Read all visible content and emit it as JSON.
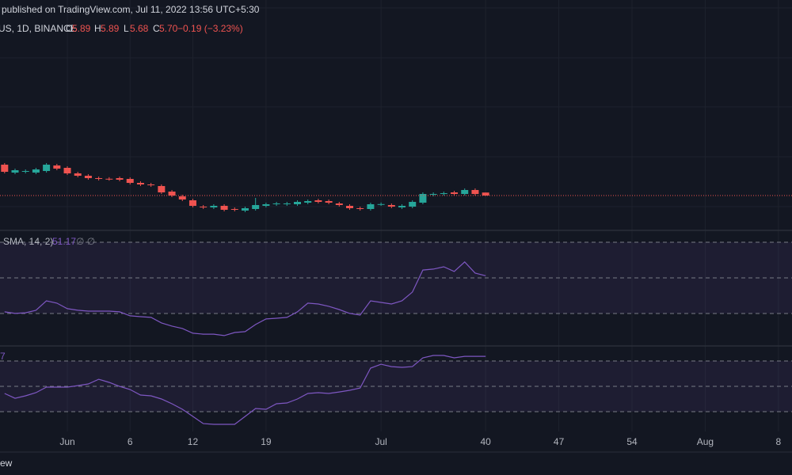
{
  "chart_data": {
    "type": "candlestick",
    "header": "published on TradingView.com, Jul 11, 2022 13:56 UTC+5:30",
    "symbol": "US, 1D, BINANCE",
    "quote": [
      {
        "name": "O",
        "value": 5.89
      },
      {
        "name": "H",
        "value": 5.89
      },
      {
        "name": "L",
        "value": 5.68
      },
      {
        "name": "C",
        "value": 5.7,
        "label": "5.70"
      }
    ],
    "change": "−0.19 (−3.23%)",
    "footer": "ew",
    "up_color": "#26a69a",
    "down_color": "#ef5350",
    "grid": true,
    "xlim": [
      -6.44,
      69.3
    ],
    "ylim": [
      3.55,
      18.05
    ],
    "xticks": [
      {
        "value": 0,
        "label": "Jun"
      },
      6,
      12,
      19,
      {
        "value": 30,
        "label": "Jul"
      },
      40,
      47,
      54,
      {
        "value": 61,
        "label": "Aug"
      },
      {
        "value": 68,
        "label": "8"
      }
    ],
    "x": [
      -6,
      -5,
      -4,
      -3,
      -2,
      -1,
      0,
      1,
      2,
      3,
      4,
      5,
      6,
      7,
      8,
      9,
      10,
      11,
      12,
      13,
      14,
      15,
      16,
      17,
      18,
      19,
      20,
      21,
      22,
      23,
      24,
      25,
      26,
      27,
      28,
      29,
      30,
      31,
      32,
      33,
      34,
      35,
      36,
      37,
      38,
      39,
      40
    ],
    "open": [
      7.65,
      7.15,
      7.2,
      7.15,
      7.25,
      7.6,
      7.45,
      7.1,
      6.95,
      6.8,
      6.76,
      6.8,
      6.75,
      6.5,
      6.4,
      6.3,
      5.95,
      5.65,
      5.4,
      5.0,
      4.95,
      5.05,
      4.85,
      4.75,
      4.85,
      5.05,
      5.15,
      5.15,
      5.15,
      5.25,
      5.4,
      5.35,
      5.2,
      5.05,
      4.9,
      4.85,
      5.15,
      5.1,
      4.95,
      5.0,
      5.25,
      5.75,
      5.8,
      5.9,
      5.8,
      6.05,
      5.89
    ],
    "high": [
      7.75,
      7.4,
      7.35,
      7.45,
      7.75,
      7.7,
      7.55,
      7.2,
      7.05,
      6.9,
      6.86,
      6.9,
      6.85,
      6.6,
      6.5,
      6.4,
      6.05,
      5.75,
      5.5,
      5.1,
      5.15,
      5.15,
      4.95,
      5.0,
      5.55,
      5.25,
      5.3,
      5.3,
      5.4,
      5.45,
      5.5,
      5.45,
      5.3,
      5.15,
      5.0,
      5.25,
      5.26,
      5.2,
      5.15,
      5.4,
      5.9,
      5.9,
      5.95,
      6.0,
      6.15,
      6.15,
      5.89
    ],
    "low": [
      7.1,
      7.05,
      7.1,
      7.05,
      7.15,
      7.3,
      7.0,
      6.85,
      6.7,
      6.65,
      6.64,
      6.6,
      6.4,
      6.3,
      6.25,
      5.8,
      5.6,
      5.35,
      4.95,
      4.85,
      4.85,
      4.7,
      4.7,
      4.65,
      4.75,
      4.95,
      5.05,
      5.05,
      5.05,
      5.15,
      5.2,
      5.15,
      5.0,
      4.8,
      4.75,
      4.75,
      5.05,
      4.9,
      4.85,
      4.9,
      5.15,
      5.65,
      5.7,
      5.7,
      5.7,
      5.7,
      5.68
    ],
    "close": [
      7.2,
      7.3,
      7.25,
      7.35,
      7.65,
      7.4,
      7.1,
      6.95,
      6.8,
      6.75,
      6.74,
      6.7,
      6.5,
      6.4,
      6.35,
      5.9,
      5.7,
      5.45,
      5.05,
      4.95,
      5.05,
      4.8,
      4.8,
      4.9,
      5.1,
      5.15,
      5.2,
      5.2,
      5.3,
      5.35,
      5.3,
      5.25,
      5.1,
      4.9,
      4.85,
      5.15,
      5.16,
      5.0,
      5.05,
      5.3,
      5.8,
      5.8,
      5.85,
      5.8,
      6.05,
      5.8,
      5.7
    ],
    "indicators": [
      {
        "type": "line",
        "legend": "SMA, 14, 2)",
        "extra": "∅ ∅",
        "color": "#7e57c2",
        "ylim": [
          12.2,
          76.2
        ],
        "levels": [
          70,
          50,
          30
        ],
        "values": [
          30.9,
          30.0,
          30.4,
          31.8,
          37.1,
          35.8,
          32.7,
          31.8,
          31.3,
          31.3,
          31.3,
          30.9,
          28.7,
          28.2,
          27.8,
          24.7,
          22.9,
          21.6,
          18.9,
          18.4,
          18.4,
          17.6,
          19.3,
          19.8,
          23.8,
          26.9,
          27.3,
          27.8,
          30.9,
          35.8,
          35.3,
          34.0,
          32.2,
          30.0,
          29.1,
          37.1,
          36.2,
          35.3,
          37.1,
          42.0,
          54.4,
          54.9,
          56.2,
          53.6,
          58.9,
          52.7,
          51.17
        ]
      },
      {
        "type": "line",
        "legend": "7",
        "color": "#7e57c2",
        "ylim": [
          -3.4,
          96.9
        ],
        "levels": [
          80,
          50,
          20
        ],
        "values": [
          41.6,
          35.9,
          38.8,
          42.5,
          49.1,
          49.1,
          49.1,
          50.9,
          52.8,
          58.4,
          54.7,
          50.0,
          46.3,
          39.7,
          38.8,
          35.0,
          29.4,
          22.8,
          14.4,
          5.9,
          5.0,
          5.0,
          5.0,
          14.4,
          23.8,
          22.8,
          29.4,
          30.3,
          35.0,
          41.6,
          42.5,
          41.6,
          43.4,
          45.3,
          48.1,
          71.6,
          76.2,
          73.4,
          72.5,
          73.4,
          83.8,
          86.6,
          86.6,
          83.8,
          85.6,
          85.6,
          85.6
        ]
      }
    ]
  }
}
